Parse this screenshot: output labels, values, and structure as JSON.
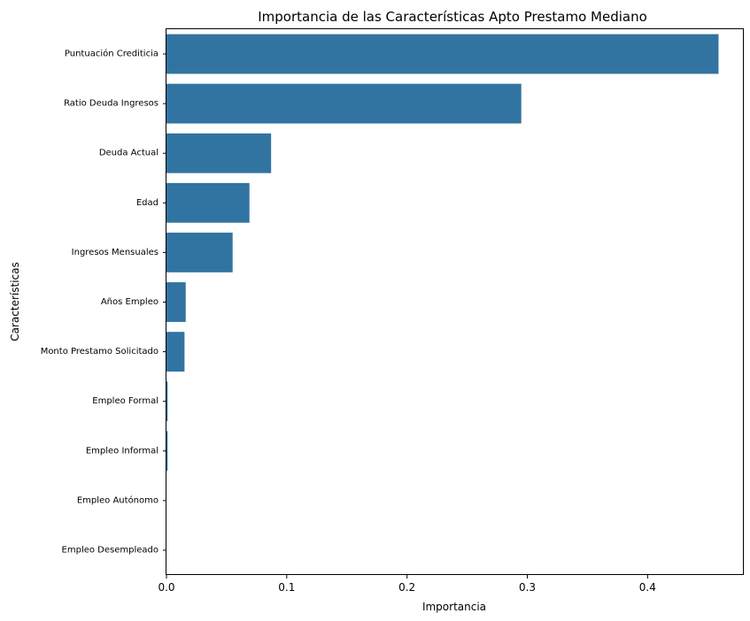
{
  "chart_data": {
    "type": "bar",
    "orientation": "horizontal",
    "title": "Importancia de las Características Apto Prestamo Mediano",
    "xlabel": "Importancia",
    "ylabel": "Características",
    "categories": [
      "Puntuación Crediticia",
      "Ratio Deuda Ingresos",
      "Deuda Actual",
      "Edad",
      "Ingresos Mensuales",
      "Años Empleo",
      "Monto Prestamo Solicitado",
      "Empleo Formal",
      "Empleo Informal",
      "Empleo Autónomo",
      "Empleo Desempleado"
    ],
    "values": [
      0.459,
      0.295,
      0.087,
      0.069,
      0.055,
      0.016,
      0.015,
      0.001,
      0.001,
      0.0,
      0.0
    ],
    "xlim": [
      0,
      0.48
    ],
    "xticks": [
      0.0,
      0.1,
      0.2,
      0.3,
      0.4
    ],
    "xtick_labels": [
      "0.0",
      "0.1",
      "0.2",
      "0.3",
      "0.4"
    ],
    "bar_color": "#3274a1",
    "grid": false
  }
}
